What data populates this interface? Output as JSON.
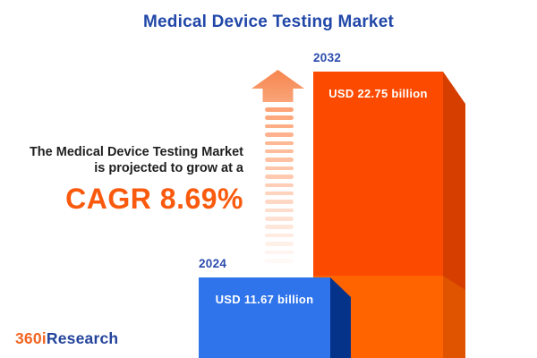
{
  "title": "Medical Device Testing Market",
  "annotation": {
    "line1": "The Medical Device Testing Market",
    "line2": "is projected to grow at a",
    "cagr_text": "CAGR 8.69%"
  },
  "chart_data": {
    "type": "bar",
    "title": "Medical Device Testing Market",
    "unit": "USD billion",
    "categories": [
      "2024",
      "2032"
    ],
    "values": [
      11.67,
      22.75
    ],
    "cagr_percent": 8.69,
    "grid": false,
    "legend_position": "none",
    "bars": [
      {
        "year": "2024",
        "value": 11.67,
        "label": "USD 11.67 billion",
        "face_color": "#2F74EB",
        "side_color": "#05338A"
      },
      {
        "year": "2032",
        "value": 22.75,
        "label": "USD 22.75 billion",
        "face_color": "#FC4A00",
        "side_color": "#D63E00",
        "lower_segment_face_color": "#FF6400",
        "lower_segment_side_color": "#E05400"
      }
    ]
  },
  "growth_arrow": {
    "head_color_top": "#F6854E",
    "head_color_bottom": "#F9A478",
    "stripe_color": "#FFA478",
    "stripe_count": 19
  },
  "logo": {
    "part1": "360i",
    "part2": "Research",
    "part1_color": "#F26522",
    "part2_color": "#24449B"
  },
  "colors": {
    "background": "#FFFFFF",
    "title_blue": "#2147A8",
    "year_label_blue": "#2B4CAD",
    "headline_dark": "#1F1F1F",
    "cagr_orange": "#F95A0D",
    "bar_value_text": "#FFFFFF"
  }
}
